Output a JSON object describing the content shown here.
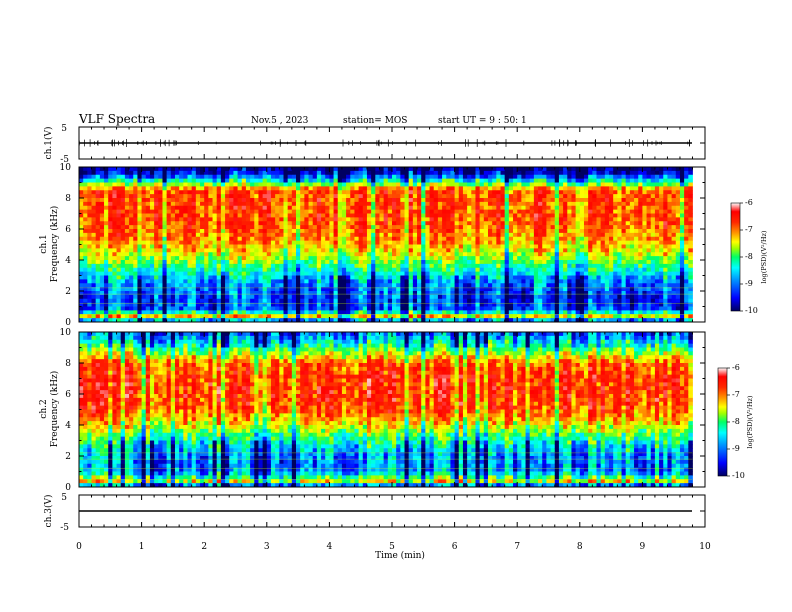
{
  "header": {
    "title": "VLF Spectra",
    "date": "Nov.5 , 2023",
    "station": "station= MOS",
    "start": "start UT =  9 : 50: 1"
  },
  "chart_data": [
    {
      "type": "line",
      "name": "ch1-waveform",
      "ylabel": "ch.1(V)",
      "ylim": [
        -5,
        5
      ],
      "yticks": [
        "5",
        "-5"
      ],
      "xlim": [
        0,
        10
      ],
      "x": [
        0,
        9.8
      ],
      "y": [
        0,
        0
      ]
    },
    {
      "type": "heatmap",
      "name": "ch1-spectrogram",
      "ylabel": "ch.1\nFrequency (kHz)",
      "ylim": [
        0,
        10
      ],
      "yticks": [
        "0",
        "2",
        "4",
        "6",
        "8",
        "10"
      ],
      "xlim": [
        0,
        10
      ],
      "data_xmax": 9.8,
      "profile_freq_khz": [
        0,
        0.3,
        0.8,
        1.5,
        2.5,
        3.5,
        4.5,
        5.5,
        6.5,
        7.5,
        8.5,
        9.0,
        9.5,
        10
      ],
      "profile_log_psd": [
        -10,
        -7.2,
        -9.2,
        -9.3,
        -9.0,
        -8.3,
        -7.6,
        -7.2,
        -7.0,
        -7.0,
        -7.0,
        -8.2,
        -9.4,
        -10
      ],
      "colorbar": {
        "min": -10,
        "max": -6,
        "ticks": [
          "-6",
          "-7",
          "-8",
          "-9",
          "-10"
        ],
        "label": "log(PSD)(V²/Hz)"
      }
    },
    {
      "type": "heatmap",
      "name": "ch2-spectrogram",
      "ylabel": "ch.2\nFrequency (kHz)",
      "ylim": [
        0,
        10
      ],
      "yticks": [
        "0",
        "2",
        "4",
        "6",
        "8",
        "10"
      ],
      "xlim": [
        0,
        10
      ],
      "data_xmax": 9.8,
      "profile_freq_khz": [
        0,
        0.3,
        1.0,
        2.0,
        3.0,
        4.0,
        5.0,
        6.0,
        7.0,
        8.0,
        8.7,
        9.3,
        10
      ],
      "profile_log_psd": [
        -10,
        -7.6,
        -9.0,
        -9.0,
        -8.4,
        -7.6,
        -7.0,
        -6.9,
        -6.9,
        -7.1,
        -7.9,
        -8.6,
        -9.2
      ],
      "colorbar": {
        "min": -10,
        "max": -6,
        "ticks": [
          "-6",
          "-7",
          "-8",
          "-9",
          "-10"
        ],
        "label": "log(PSD)(V²/Hz)"
      }
    },
    {
      "type": "line",
      "name": "ch3-waveform",
      "ylabel": "ch.3(V)",
      "ylim": [
        -5,
        5
      ],
      "yticks": [
        "5",
        "-5"
      ],
      "xlim": [
        0,
        10
      ],
      "x": [
        0,
        9.8
      ],
      "y": [
        0,
        0
      ]
    }
  ],
  "xaxis": {
    "label": "Time (min)",
    "ticks": [
      "0",
      "1",
      "2",
      "3",
      "4",
      "5",
      "6",
      "7",
      "8",
      "9",
      "10"
    ]
  },
  "colormap": [
    "#000060",
    "#0000ff",
    "#00a0ff",
    "#00ffff",
    "#00ff66",
    "#a0ff00",
    "#ffff00",
    "#ff9900",
    "#ff2a00",
    "#ff0000"
  ]
}
